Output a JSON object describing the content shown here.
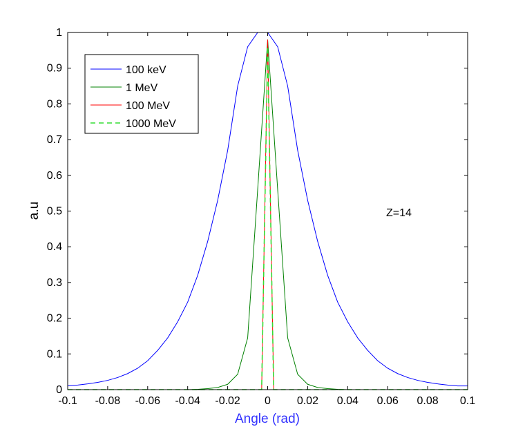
{
  "chart_data": {
    "type": "line",
    "xlabel": "Angle (rad)",
    "ylabel": "a.u",
    "xlim": [
      -0.1,
      0.1
    ],
    "ylim": [
      0,
      1
    ],
    "xticks": [
      "-0.1",
      "-0.08",
      "-0.06",
      "-0.04",
      "-0.02",
      "0",
      "0.02",
      "0.04",
      "0.06",
      "0.08",
      "0.1"
    ],
    "yticks": [
      "0",
      "0.1",
      "0.2",
      "0.3",
      "0.4",
      "0.5",
      "0.6",
      "0.7",
      "0.8",
      "0.9",
      "1"
    ],
    "grid": false,
    "legend_position": "top-left",
    "annotation": "Z=14",
    "colors": {
      "xlabel": "#3333ff",
      "ylabel": "#000000"
    },
    "series": [
      {
        "name": "100 keV",
        "color": "#0000ff",
        "dash": "solid",
        "x": [
          -0.1,
          -0.095,
          -0.09,
          -0.085,
          -0.08,
          -0.075,
          -0.07,
          -0.065,
          -0.06,
          -0.055,
          -0.05,
          -0.045,
          -0.04,
          -0.035,
          -0.03,
          -0.025,
          -0.02,
          -0.015,
          -0.01,
          -0.005,
          0,
          0.005,
          0.01,
          0.015,
          0.02,
          0.025,
          0.03,
          0.035,
          0.04,
          0.045,
          0.05,
          0.055,
          0.06,
          0.065,
          0.07,
          0.075,
          0.08,
          0.085,
          0.09,
          0.095,
          0.1
        ],
        "y": [
          0.0105,
          0.0129,
          0.0161,
          0.0203,
          0.026,
          0.034,
          0.045,
          0.06,
          0.081,
          0.11,
          0.145,
          0.19,
          0.245,
          0.32,
          0.415,
          0.53,
          0.67,
          0.85,
          0.96,
          1.0,
          1.0,
          0.96,
          0.85,
          0.67,
          0.53,
          0.415,
          0.32,
          0.245,
          0.19,
          0.145,
          0.11,
          0.081,
          0.06,
          0.045,
          0.034,
          0.026,
          0.0203,
          0.0161,
          0.0129,
          0.0105,
          0.0105
        ]
      },
      {
        "name": "1 MeV",
        "color": "#008000",
        "dash": "solid",
        "x": [
          -0.1,
          -0.04,
          -0.035,
          -0.03,
          -0.025,
          -0.02,
          -0.015,
          -0.01,
          -0.005,
          0,
          0.005,
          0.01,
          0.015,
          0.02,
          0.025,
          0.03,
          0.035,
          0.04,
          0.1
        ],
        "y": [
          0,
          0,
          0.001,
          0.003,
          0.006,
          0.015,
          0.043,
          0.145,
          0.56,
          0.98,
          0.56,
          0.145,
          0.043,
          0.015,
          0.006,
          0.003,
          0.001,
          0,
          0
        ]
      },
      {
        "name": "100 MeV",
        "color": "#ff0000",
        "dash": "solid",
        "x": [
          -0.1,
          -0.003,
          0,
          0.003,
          0.1
        ],
        "y": [
          0,
          0,
          0.98,
          0,
          0
        ]
      },
      {
        "name": "1000 MeV",
        "color": "#33dd33",
        "dash": "dashed",
        "x": [
          -0.1,
          -0.003,
          0,
          0.003,
          0.1
        ],
        "y": [
          0,
          0,
          0.96,
          0,
          0
        ]
      }
    ]
  }
}
